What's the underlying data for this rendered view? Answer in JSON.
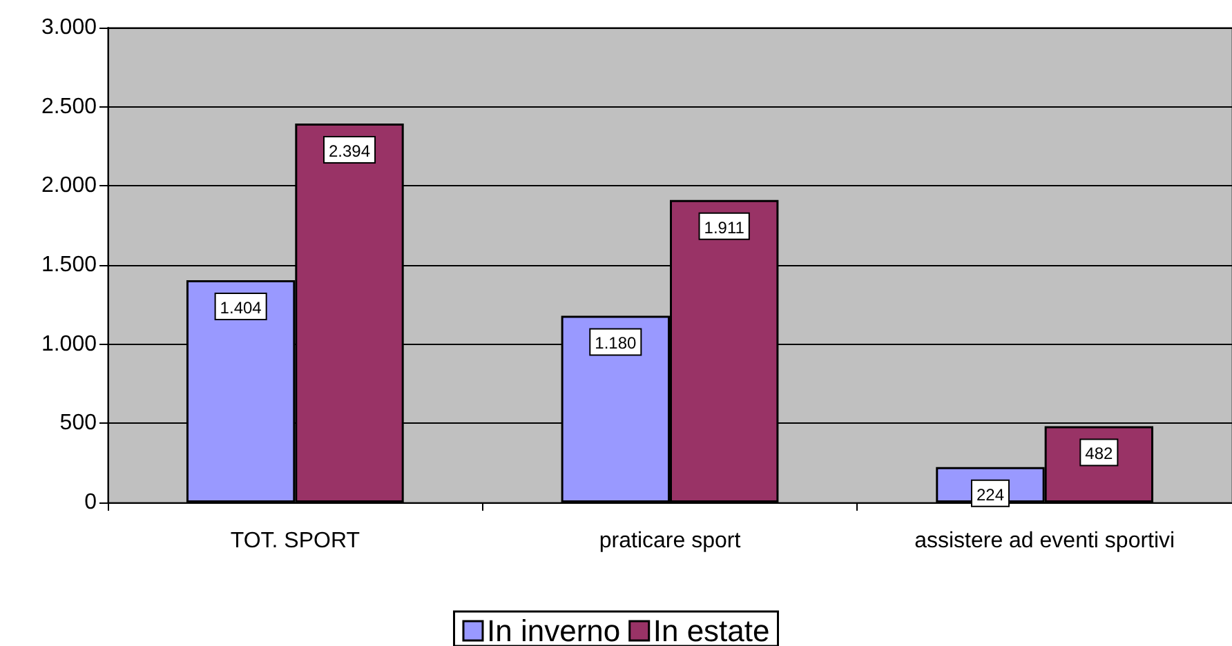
{
  "chart_data": {
    "type": "bar",
    "categories": [
      "TOT. SPORT",
      "praticare sport",
      "assistere ad eventi sportivi"
    ],
    "series": [
      {
        "name": "In inverno",
        "color": "#9999ff",
        "values": [
          1404,
          1180,
          224
        ],
        "value_labels": [
          "1.404",
          "1.180",
          "224"
        ]
      },
      {
        "name": "In estate",
        "color": "#993366",
        "values": [
          2394,
          1911,
          482
        ],
        "value_labels": [
          "2.394",
          "1.911",
          "482"
        ]
      }
    ],
    "ylim": [
      0,
      3000
    ],
    "yticks": [
      {
        "value": 0,
        "label": "0"
      },
      {
        "value": 500,
        "label": "500"
      },
      {
        "value": 1000,
        "label": "1.000"
      },
      {
        "value": 1500,
        "label": "1.500"
      },
      {
        "value": 2000,
        "label": "2.000"
      },
      {
        "value": 2500,
        "label": "2.500"
      },
      {
        "value": 3000,
        "label": "3.000"
      }
    ],
    "grid": "y",
    "legend": "bottom"
  }
}
